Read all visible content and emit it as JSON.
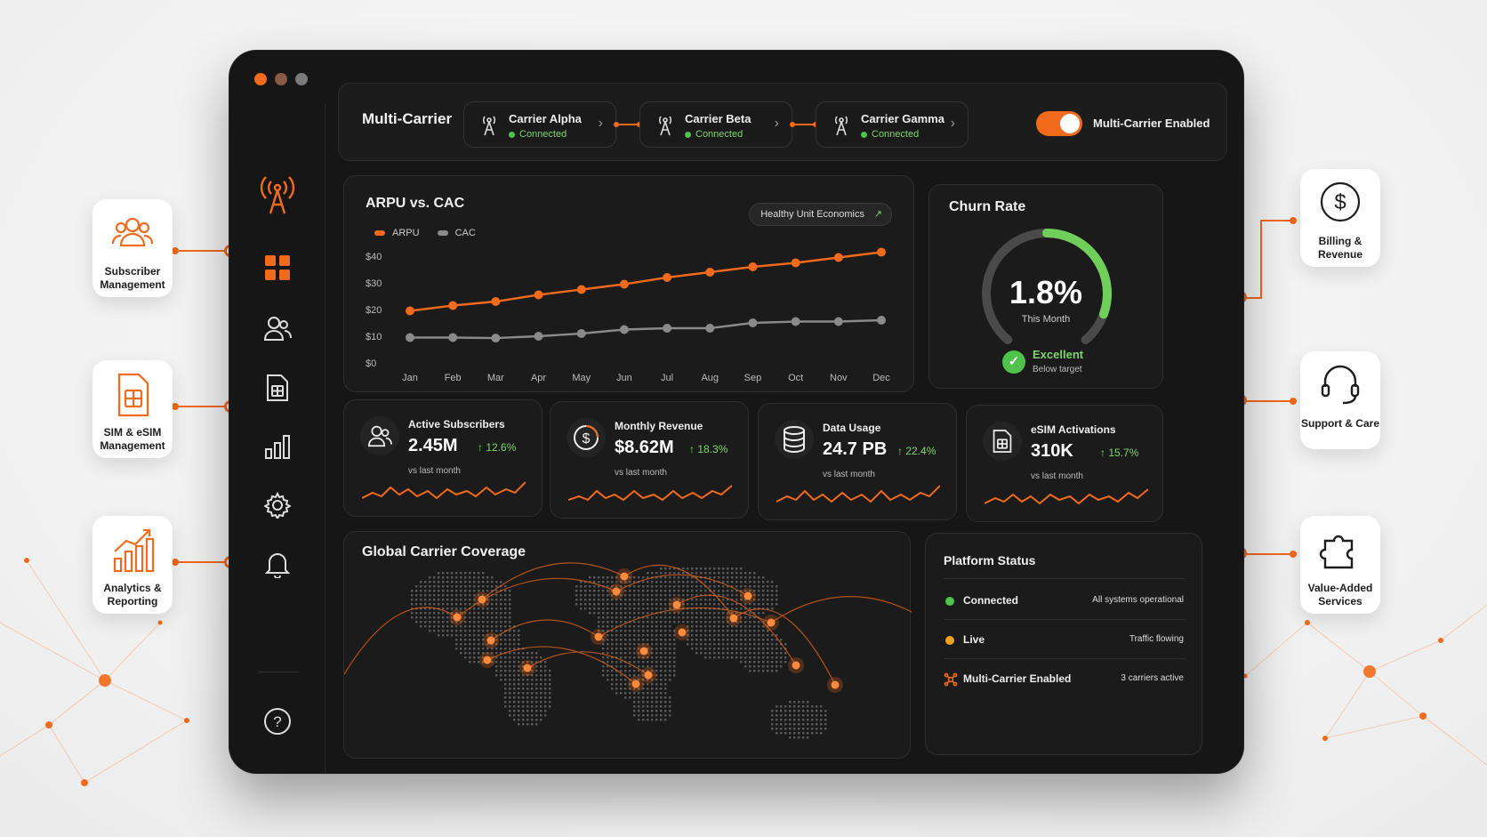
{
  "carrier_bar": {
    "title": "Multi-Carrier",
    "carriers": [
      {
        "name": "Carrier Alpha",
        "status": "Connected"
      },
      {
        "name": "Carrier Beta",
        "status": "Connected"
      },
      {
        "name": "Carrier Gamma",
        "status": "Connected"
      }
    ],
    "toggle_label": "Multi-Carrier Enabled",
    "toggle_on": true
  },
  "arpu_panel": {
    "title": "ARPU vs. CAC",
    "badge": "Healthy Unit Economics",
    "badge_arrow": "↗"
  },
  "chart_data": {
    "type": "line",
    "title": "ARPU vs. CAC",
    "categories": [
      "Jan",
      "Feb",
      "Mar",
      "Apr",
      "May",
      "Jun",
      "Jul",
      "Aug",
      "Sep",
      "Oct",
      "Nov",
      "Dec"
    ],
    "y_ticks": [
      "$40",
      "$30",
      "$20",
      "$10",
      "$0"
    ],
    "ylim": [
      0,
      40
    ],
    "series": [
      {
        "name": "ARPU",
        "color": "#f26a1b",
        "values": [
          19.5,
          21.5,
          23,
          25.5,
          27.5,
          29.5,
          32,
          34,
          36,
          37.5,
          39.5,
          41.5
        ]
      },
      {
        "name": "CAC",
        "color": "#8a8a8a",
        "values": [
          9.5,
          9.5,
          9.3,
          10,
          11,
          12.5,
          13,
          13,
          15,
          15.5,
          15.5,
          16
        ]
      }
    ],
    "legend": "top-left",
    "grid": false
  },
  "churn": {
    "title": "Churn Rate",
    "value": "1.8%",
    "sub": "This Month",
    "gauge_fraction": 0.25,
    "status": "Excellent",
    "status_sub": "Below target"
  },
  "kpis": [
    {
      "label": "Active Subscribers",
      "value": "2.45M",
      "delta": "↑ 12.6%",
      "sub": "vs last month",
      "icon": "users-icon"
    },
    {
      "label": "Monthly Revenue",
      "value": "$8.62M",
      "delta": "↑ 18.3%",
      "sub": "vs last month",
      "icon": "dollar-icon"
    },
    {
      "label": "Data Usage",
      "value": "24.7 PB",
      "delta": "↑ 22.4%",
      "sub": "vs last month",
      "icon": "database-icon"
    },
    {
      "label": "eSIM Activations",
      "value": "310K",
      "delta": "↑ 15.7%",
      "sub": "vs last month",
      "icon": "sim-icon"
    }
  ],
  "map": {
    "title": "Global Carrier Coverage"
  },
  "platform_status": {
    "title": "Platform Status",
    "rows": [
      {
        "label": "Connected",
        "info": "All systems operational",
        "color": "#4fc24b"
      },
      {
        "label": "Live",
        "info": "Traffic flowing",
        "color": "#f2a31b"
      },
      {
        "label": "Multi-Carrier Enabled",
        "info": "3 carriers active",
        "color": "#f26a1b"
      }
    ]
  },
  "features_left": [
    {
      "label": "Subscriber Management",
      "icon": "subscriber-icon"
    },
    {
      "label": "SIM & eSIM Management",
      "icon": "sim-card-icon"
    },
    {
      "label": "Analytics & Reporting",
      "icon": "analytics-icon"
    }
  ],
  "features_right": [
    {
      "label": "Billing & Revenue",
      "icon": "billing-icon"
    },
    {
      "label": "Support & Care",
      "icon": "headset-icon"
    },
    {
      "label": "Value-Added Services",
      "icon": "puzzle-icon"
    }
  ],
  "sidebar": {
    "icons": [
      "antenna-icon",
      "dashboard-icon",
      "users-icon",
      "sim-icon",
      "chart-icon",
      "settings-icon",
      "bell-icon",
      "help-icon"
    ]
  }
}
